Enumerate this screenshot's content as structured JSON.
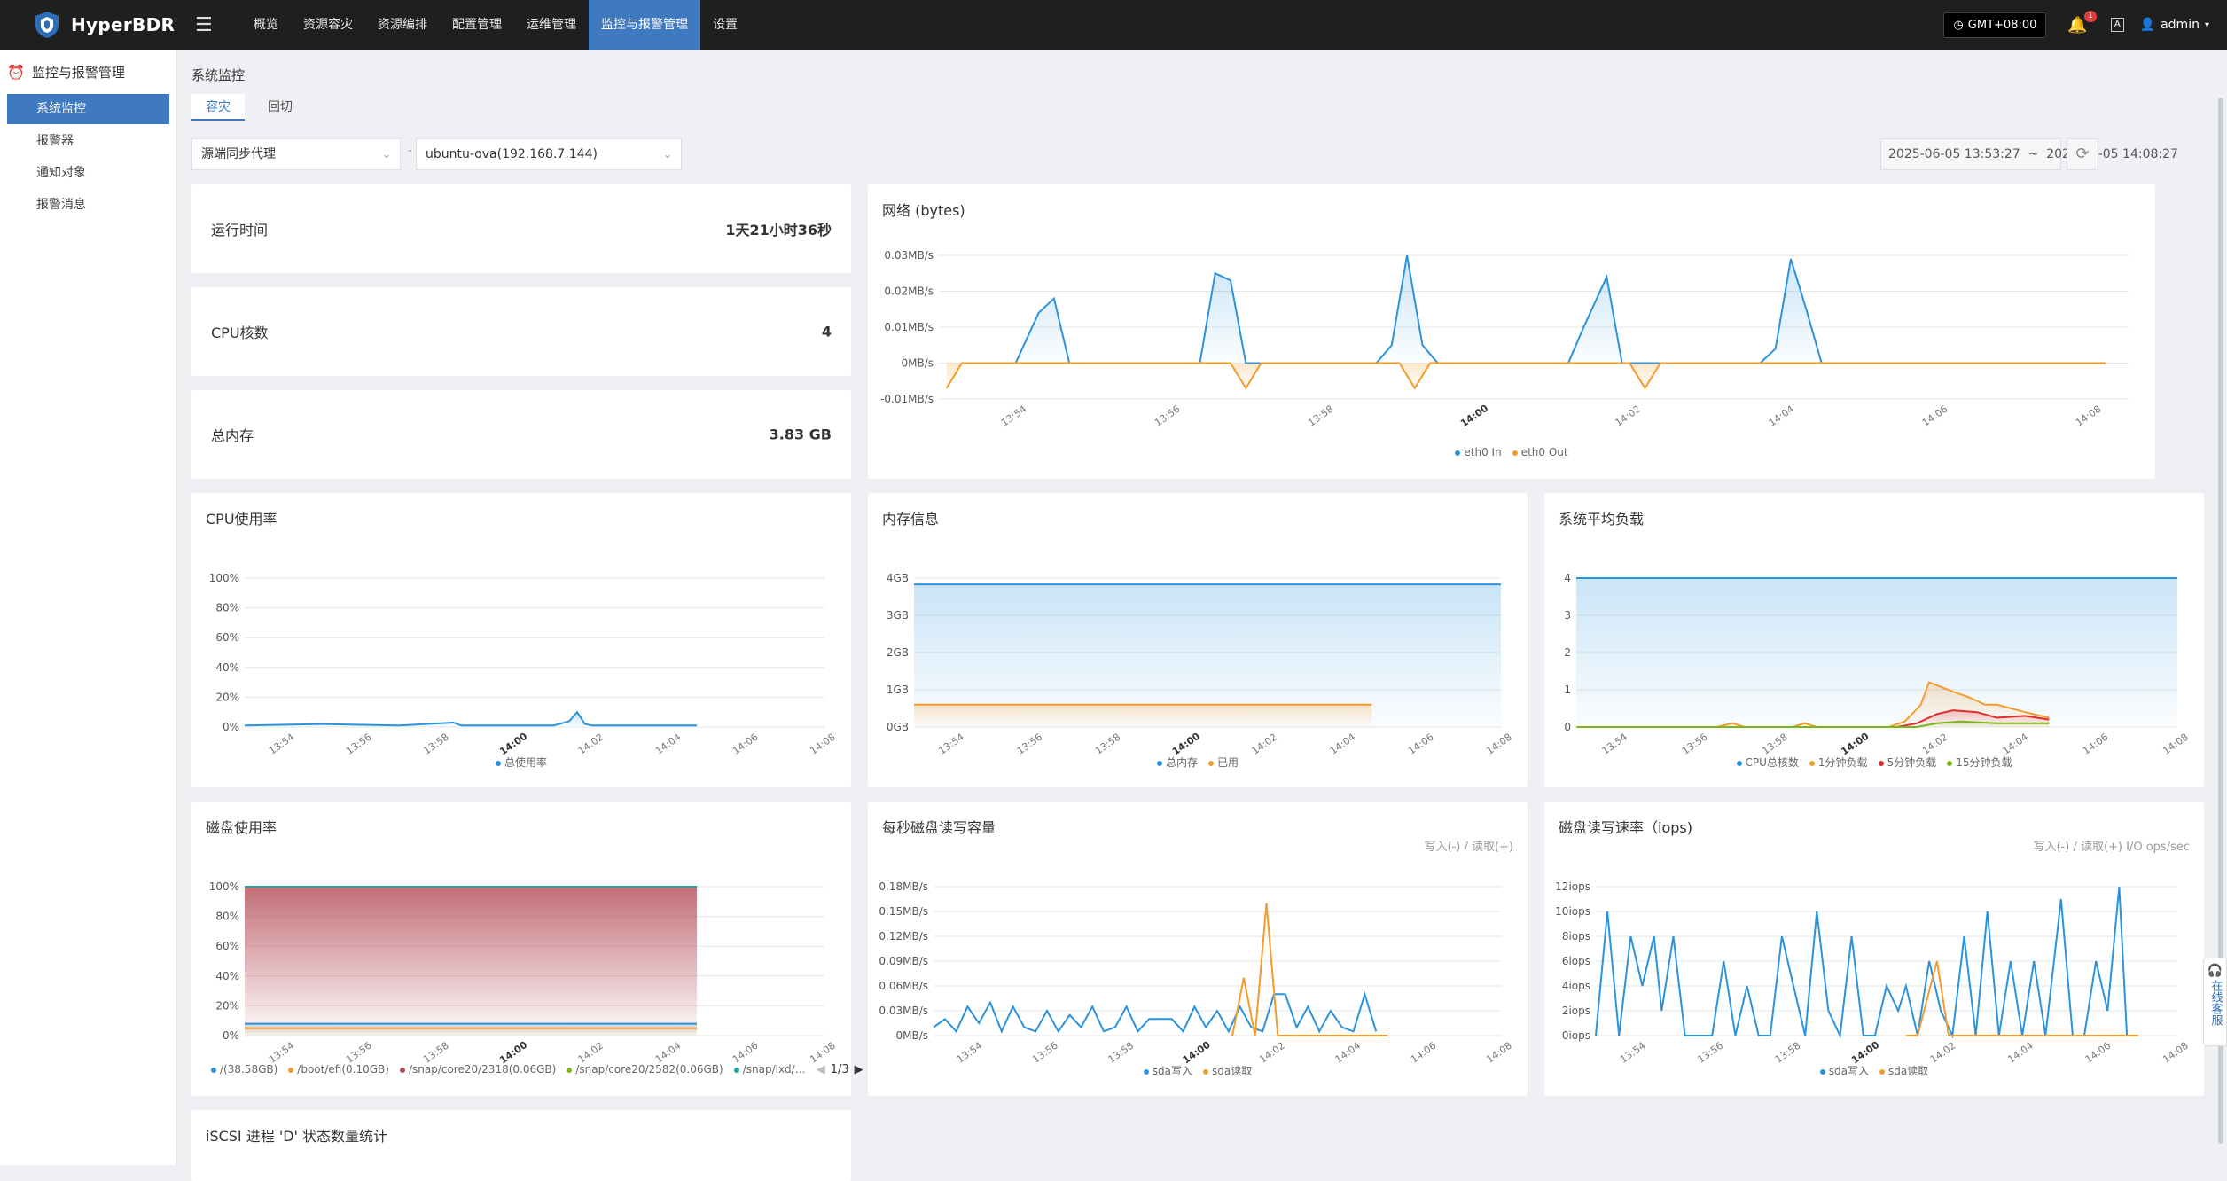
{
  "app": {
    "name": "HyperBDR"
  },
  "nav": [
    "概览",
    "资源容灾",
    "资源编排",
    "配置管理",
    "运维管理",
    "监控与报警管理",
    "设置"
  ],
  "nav_active": 5,
  "topright": {
    "timezone": "GMT+08:00",
    "notification_count": "1",
    "lang_icon": "A",
    "user": "admin"
  },
  "sidebar": {
    "section": "监控与报警管理",
    "items": [
      "系统监控",
      "报警器",
      "通知对象",
      "报警消息"
    ],
    "active": 0
  },
  "page": {
    "title": "系统监控",
    "tabs": [
      "容灾",
      "回切"
    ],
    "active_tab": 0
  },
  "filters": {
    "proxy": "源端同步代理",
    "separator": "-",
    "host": "ubuntu-ova(192.168.7.144)",
    "range": "2025-06-05 13:53:27  ~  2025-06-05 14:08:27"
  },
  "stats": [
    {
      "label": "运行时间",
      "value": "1天21小时36秒"
    },
    {
      "label": "CPU核数",
      "value": "4"
    },
    {
      "label": "总内存",
      "value": "3.83 GB"
    }
  ],
  "float_widget": "在线客服",
  "colors": {
    "accent": "#3f79c0",
    "blue": "#2b93dd",
    "orange": "#f39c2b",
    "red": "#e02c2c",
    "green": "#7cb518",
    "teal": "#1aa3a3",
    "maroon": "#b34a55"
  },
  "chart_data": [
    {
      "id": "network",
      "type": "line",
      "title": "网络 (bytes)",
      "x": [
        "13:54",
        "13:56",
        "13:58",
        "14:00",
        "14:02",
        "14:04",
        "14:06",
        "14:08"
      ],
      "yticks": [
        "0.03MB/s",
        "0.02MB/s",
        "0.01MB/s",
        "0MB/s",
        "-0.01MB/s"
      ],
      "ylim": [
        -0.01,
        0.03
      ],
      "series": [
        {
          "name": "eth0 In",
          "color": "#2b93dd",
          "points": [
            [
              0.5,
              0
            ],
            [
              1,
              0
            ],
            [
              1.3,
              0.014
            ],
            [
              1.5,
              0.018
            ],
            [
              1.7,
              0
            ],
            [
              2.5,
              0
            ],
            [
              3.4,
              0
            ],
            [
              3.6,
              0.025
            ],
            [
              3.8,
              0.023
            ],
            [
              4.0,
              0
            ],
            [
              5.0,
              0
            ],
            [
              5.7,
              0
            ],
            [
              5.9,
              0.005
            ],
            [
              6.1,
              0.03
            ],
            [
              6.3,
              0.005
            ],
            [
              6.5,
              0
            ],
            [
              7,
              0
            ],
            [
              8.2,
              0
            ],
            [
              8.4,
              0.01
            ],
            [
              8.7,
              0.024
            ],
            [
              8.9,
              0
            ],
            [
              10,
              0
            ],
            [
              10.7,
              0
            ],
            [
              10.9,
              0.004
            ],
            [
              11.1,
              0.029
            ],
            [
              11.3,
              0.015
            ],
            [
              11.5,
              0
            ],
            [
              12.1,
              0
            ]
          ]
        },
        {
          "name": "eth0 Out",
          "color": "#f39c2b",
          "points": [
            [
              0.1,
              -0.007
            ],
            [
              0.3,
              0
            ],
            [
              3.8,
              0
            ],
            [
              4.0,
              -0.007
            ],
            [
              4.2,
              0
            ],
            [
              6.0,
              0
            ],
            [
              6.2,
              -0.007
            ],
            [
              6.4,
              0
            ],
            [
              9.0,
              0
            ],
            [
              9.2,
              -0.007
            ],
            [
              9.4,
              0
            ],
            [
              15.2,
              0
            ]
          ]
        }
      ]
    },
    {
      "id": "cpu",
      "type": "area",
      "title": "CPU使用率",
      "x": [
        "13:54",
        "13:56",
        "13:58",
        "14:00",
        "14:02",
        "14:04",
        "14:06",
        "14:08"
      ],
      "yticks": [
        "100%",
        "80%",
        "60%",
        "40%",
        "20%",
        "0%"
      ],
      "ylim": [
        0,
        100
      ],
      "series": [
        {
          "name": "总使用率",
          "color": "#2b93dd",
          "points": [
            [
              0,
              1
            ],
            [
              2,
              2
            ],
            [
              4,
              1
            ],
            [
              5.4,
              3
            ],
            [
              5.6,
              1
            ],
            [
              8,
              1
            ],
            [
              8.4,
              4
            ],
            [
              8.6,
              10
            ],
            [
              8.8,
              2
            ],
            [
              9,
              1
            ],
            [
              11.7,
              1
            ]
          ]
        }
      ]
    },
    {
      "id": "memory",
      "type": "area",
      "title": "内存信息",
      "x": [
        "13:54",
        "13:56",
        "13:58",
        "14:00",
        "14:02",
        "14:04",
        "14:06",
        "14:08"
      ],
      "yticks": [
        "4GB",
        "3GB",
        "2GB",
        "1GB",
        "0GB"
      ],
      "ylim": [
        0,
        4
      ],
      "series": [
        {
          "name": "总内存",
          "color": "#2b93dd",
          "points": [
            [
              0,
              3.83
            ],
            [
              15,
              3.83
            ]
          ]
        },
        {
          "name": "已用",
          "color": "#f39c2b",
          "points": [
            [
              0,
              0.6
            ],
            [
              11.7,
              0.6
            ]
          ]
        }
      ]
    },
    {
      "id": "load",
      "type": "area",
      "title": "系统平均负载",
      "x": [
        "13:54",
        "13:56",
        "13:58",
        "14:00",
        "14:02",
        "14:04",
        "14:06",
        "14:08"
      ],
      "yticks": [
        "4",
        "3",
        "2",
        "1",
        "0"
      ],
      "ylim": [
        0,
        4
      ],
      "series": [
        {
          "name": "CPU总核数",
          "color": "#2b93dd",
          "points": [
            [
              0,
              4
            ],
            [
              15,
              4
            ]
          ]
        },
        {
          "name": "1分钟负载",
          "color": "#f39c2b",
          "points": [
            [
              0,
              0
            ],
            [
              3.5,
              0
            ],
            [
              3.9,
              0.1
            ],
            [
              4.2,
              0
            ],
            [
              5.4,
              0
            ],
            [
              5.7,
              0.1
            ],
            [
              6.0,
              0
            ],
            [
              7.8,
              0
            ],
            [
              8.2,
              0.15
            ],
            [
              8.6,
              0.6
            ],
            [
              8.8,
              1.2
            ],
            [
              9.4,
              0.95
            ],
            [
              9.8,
              0.8
            ],
            [
              10.2,
              0.6
            ],
            [
              10.5,
              0.6
            ],
            [
              11.2,
              0.4
            ],
            [
              11.8,
              0.25
            ]
          ]
        },
        {
          "name": "5分钟负载",
          "color": "#e02c2c",
          "points": [
            [
              0,
              0
            ],
            [
              8,
              0
            ],
            [
              8.5,
              0.1
            ],
            [
              9.0,
              0.35
            ],
            [
              9.4,
              0.45
            ],
            [
              10,
              0.4
            ],
            [
              10.5,
              0.25
            ],
            [
              11.2,
              0.3
            ],
            [
              11.8,
              0.2
            ]
          ]
        },
        {
          "name": "15分钟负载",
          "color": "#7cb518",
          "points": [
            [
              0,
              0
            ],
            [
              8.5,
              0
            ],
            [
              9.0,
              0.1
            ],
            [
              9.6,
              0.15
            ],
            [
              10.5,
              0.1
            ],
            [
              11.8,
              0.1
            ]
          ]
        }
      ]
    },
    {
      "id": "disk",
      "type": "area",
      "title": "磁盘使用率",
      "x": [
        "13:54",
        "13:56",
        "13:58",
        "14:00",
        "14:02",
        "14:04",
        "14:06",
        "14:08"
      ],
      "yticks": [
        "100%",
        "80%",
        "60%",
        "40%",
        "20%",
        "0%"
      ],
      "ylim": [
        0,
        100
      ],
      "series": [
        {
          "name": "/(38.58GB)",
          "color": "#2b93dd",
          "points": [
            [
              0,
              8
            ],
            [
              11.7,
              8
            ]
          ]
        },
        {
          "name": "/boot/efi(0.10GB)",
          "color": "#f39c2b",
          "points": [
            [
              0,
              5
            ],
            [
              11.7,
              5
            ]
          ]
        },
        {
          "name": "/snap/core20/2318(0.06GB)",
          "color": "#b34a55",
          "points": [
            [
              0,
              100
            ],
            [
              11.7,
              100
            ]
          ]
        },
        {
          "name": "/snap/core20/2582(0.06GB)",
          "color": "#7cb518",
          "points": [
            [
              0,
              100
            ],
            [
              11.7,
              100
            ]
          ]
        },
        {
          "name": "/snap/lxd/…",
          "color": "#1aa3a3",
          "points": [
            [
              0,
              100
            ],
            [
              11.7,
              100
            ]
          ]
        }
      ],
      "pager": "1/3"
    },
    {
      "id": "diskio",
      "type": "line",
      "title": "每秒磁盘读写容量",
      "note": "写入(-) / 读取(+)",
      "x": [
        "13:54",
        "13:56",
        "13:58",
        "14:00",
        "14:02",
        "14:04",
        "14:06",
        "14:08"
      ],
      "yticks": [
        "0.18MB/s",
        "0.15MB/s",
        "0.12MB/s",
        "0.09MB/s",
        "0.06MB/s",
        "0.03MB/s",
        "0MB/s"
      ],
      "ylim": [
        0,
        0.18
      ],
      "series": [
        {
          "name": "sda写入",
          "color": "#2b93dd",
          "points": [
            [
              0,
              0.01
            ],
            [
              0.3,
              0.02
            ],
            [
              0.6,
              0.005
            ],
            [
              0.9,
              0.035
            ],
            [
              1.2,
              0.015
            ],
            [
              1.5,
              0.04
            ],
            [
              1.8,
              0.005
            ],
            [
              2.1,
              0.035
            ],
            [
              2.4,
              0.01
            ],
            [
              2.7,
              0.005
            ],
            [
              3.0,
              0.03
            ],
            [
              3.3,
              0.005
            ],
            [
              3.6,
              0.025
            ],
            [
              3.9,
              0.01
            ],
            [
              4.2,
              0.035
            ],
            [
              4.5,
              0.005
            ],
            [
              4.8,
              0.01
            ],
            [
              5.1,
              0.035
            ],
            [
              5.4,
              0.005
            ],
            [
              5.7,
              0.02
            ],
            [
              6.0,
              0.02
            ],
            [
              6.3,
              0.02
            ],
            [
              6.6,
              0.005
            ],
            [
              6.9,
              0.035
            ],
            [
              7.2,
              0.01
            ],
            [
              7.5,
              0.03
            ],
            [
              7.8,
              0.005
            ],
            [
              8.1,
              0.035
            ],
            [
              8.4,
              0.01
            ],
            [
              8.7,
              0.005
            ],
            [
              9.0,
              0.05
            ],
            [
              9.3,
              0.05
            ],
            [
              9.6,
              0.01
            ],
            [
              9.9,
              0.035
            ],
            [
              10.2,
              0.005
            ],
            [
              10.5,
              0.03
            ],
            [
              10.8,
              0.01
            ],
            [
              11.1,
              0.005
            ],
            [
              11.4,
              0.05
            ],
            [
              11.7,
              0.005
            ]
          ]
        },
        {
          "name": "sda读取",
          "color": "#f39c2b",
          "points": [
            [
              7.9,
              0
            ],
            [
              8.2,
              0.07
            ],
            [
              8.5,
              0
            ],
            [
              8.8,
              0.16
            ],
            [
              9.1,
              0
            ],
            [
              12,
              0
            ]
          ]
        }
      ]
    },
    {
      "id": "iops",
      "type": "line",
      "title": "磁盘读写速率（iops)",
      "note": "写入(-) / 读取(+) I/O ops/sec",
      "x": [
        "13:54",
        "13:56",
        "13:58",
        "14:00",
        "14:02",
        "14:04",
        "14:06",
        "14:08"
      ],
      "yticks": [
        "12iops",
        "10iops",
        "8iops",
        "6iops",
        "4iops",
        "2iops",
        "0iops"
      ],
      "ylim": [
        0,
        12
      ],
      "series": [
        {
          "name": "sda写入",
          "color": "#2b93dd",
          "points": [
            [
              0,
              0
            ],
            [
              0.3,
              10
            ],
            [
              0.6,
              0
            ],
            [
              0.9,
              8
            ],
            [
              1.2,
              4
            ],
            [
              1.5,
              8
            ],
            [
              1.7,
              2
            ],
            [
              2.0,
              8
            ],
            [
              2.3,
              0
            ],
            [
              3.0,
              0
            ],
            [
              3.3,
              6
            ],
            [
              3.6,
              0
            ],
            [
              3.9,
              4
            ],
            [
              4.2,
              0
            ],
            [
              4.5,
              0
            ],
            [
              4.8,
              8
            ],
            [
              5.1,
              4
            ],
            [
              5.4,
              0
            ],
            [
              5.7,
              10
            ],
            [
              6.0,
              2
            ],
            [
              6.3,
              0
            ],
            [
              6.6,
              8
            ],
            [
              6.9,
              0
            ],
            [
              7.2,
              0
            ],
            [
              7.5,
              4
            ],
            [
              7.8,
              2
            ],
            [
              8.0,
              4
            ],
            [
              8.3,
              0
            ],
            [
              8.6,
              6
            ],
            [
              8.9,
              2
            ],
            [
              9.2,
              0
            ],
            [
              9.5,
              8
            ],
            [
              9.8,
              0
            ],
            [
              10.1,
              10
            ],
            [
              10.4,
              0
            ],
            [
              10.7,
              6
            ],
            [
              11.0,
              0
            ],
            [
              11.3,
              6
            ],
            [
              11.6,
              0
            ],
            [
              12.0,
              11
            ],
            [
              12.3,
              0
            ],
            [
              12.6,
              0
            ],
            [
              12.9,
              6
            ],
            [
              13.2,
              2
            ],
            [
              13.5,
              12
            ],
            [
              13.7,
              0
            ]
          ]
        },
        {
          "name": "sda读取",
          "color": "#f39c2b",
          "points": [
            [
              8.0,
              0
            ],
            [
              8.3,
              0
            ],
            [
              8.8,
              6
            ],
            [
              9.1,
              0
            ],
            [
              14,
              0
            ]
          ]
        }
      ]
    }
  ],
  "iscsi": {
    "title": "iSCSI 进程 'D' 状态数量统计"
  }
}
